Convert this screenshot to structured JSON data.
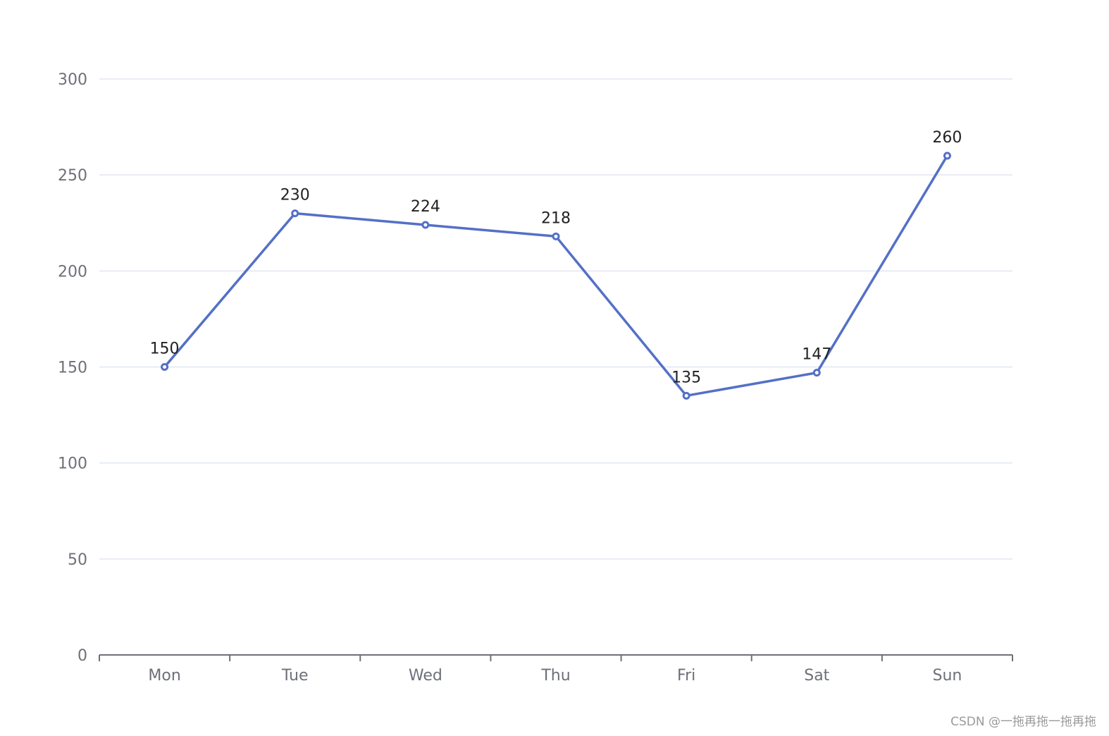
{
  "chart_data": {
    "type": "line",
    "categories": [
      "Mon",
      "Tue",
      "Wed",
      "Thu",
      "Fri",
      "Sat",
      "Sun"
    ],
    "values": [
      150,
      230,
      224,
      218,
      135,
      147,
      260
    ],
    "ylim": [
      0,
      300
    ],
    "yticks": [
      0,
      50,
      100,
      150,
      200,
      250,
      300
    ],
    "grid": true,
    "data_labels": true,
    "colors": {
      "line": "#5470c6",
      "grid": "#e0e6f1",
      "axis": "#6e7079"
    }
  },
  "watermark": "CSDN @一拖再拖一拖再拖"
}
